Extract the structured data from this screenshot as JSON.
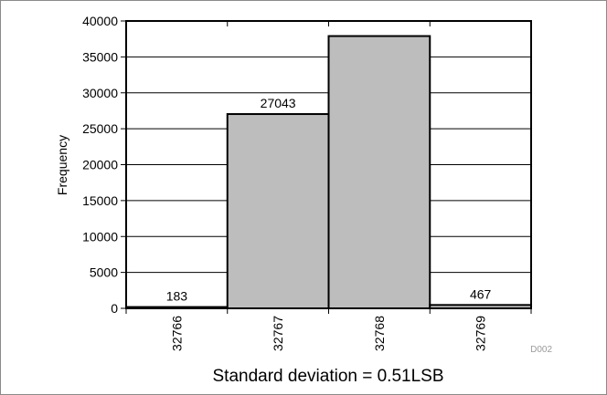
{
  "chart_data": {
    "type": "bar",
    "categories": [
      "32766",
      "32767",
      "32768",
      "32769"
    ],
    "values": [
      183,
      27043,
      37900,
      467
    ],
    "data_labels": [
      "183",
      "27043",
      "",
      "467"
    ],
    "ylabel": "Frequency",
    "xlabel": "Standard deviation = 0.51LSB",
    "ylim": [
      0,
      40000
    ],
    "yticks": [
      "0",
      "5000",
      "10000",
      "15000",
      "20000",
      "25000",
      "30000",
      "35000",
      "40000"
    ],
    "grid": true,
    "bar_color": "#BDBDBD"
  },
  "figure_id": "D002"
}
